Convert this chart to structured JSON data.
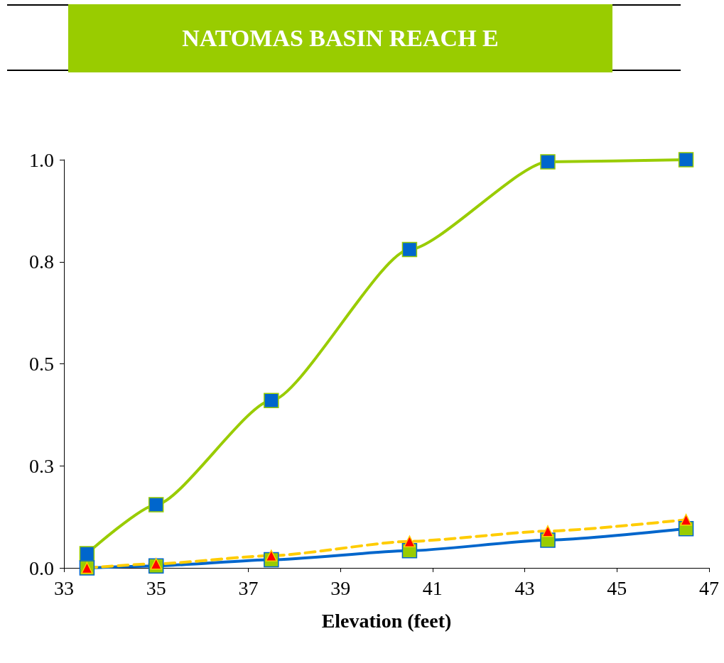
{
  "chart_data": {
    "type": "line",
    "title": "NATOMAS BASIN REACH E",
    "xlabel": "Elevation (feet)",
    "x": [
      33.5,
      35,
      37.5,
      40.5,
      43.5,
      46.5
    ],
    "series": [
      {
        "color": "#99cc00",
        "marker": "square",
        "line_style": "solid",
        "colors": [
          "#0066cc",
          "#0066cc",
          "#0066cc",
          "#0066cc",
          "#0066cc",
          "#0066cc"
        ],
        "values": [
          0.035,
          0.155,
          0.41,
          0.78,
          0.995,
          1.0
        ]
      },
      {
        "color": "#0066cc",
        "marker": "square",
        "line_style": "solid",
        "colors": [
          "#99cc00",
          "#99cc00",
          "#99cc00",
          "#99cc00",
          "#99cc00",
          "#99cc00"
        ],
        "values": [
          0,
          0.005,
          0.02,
          0.042,
          0.068,
          0.096
        ]
      },
      {
        "color": "#ffcc00",
        "marker": "triangle",
        "line_style": "dashed",
        "colors": [
          "#ff0000",
          "#ff0000",
          "#ff0000",
          "#ff0000",
          "#ff0000",
          "#ff0000"
        ],
        "values": [
          0,
          0.01,
          0.03,
          0.065,
          0.09,
          0.118
        ]
      }
    ],
    "xlim": [
      33,
      47
    ],
    "xticks": [
      33,
      35,
      37,
      39,
      41,
      43,
      45,
      47
    ],
    "ylim": [
      0,
      1
    ],
    "yticks": [
      {
        "value": 0,
        "label": "0.0"
      },
      {
        "value": 0.25,
        "label": "0.3"
      },
      {
        "value": 0.5,
        "label": "0.5"
      },
      {
        "value": 0.75,
        "label": "0.8"
      },
      {
        "value": 1,
        "label": "1.0"
      }
    ],
    "grid": false
  }
}
